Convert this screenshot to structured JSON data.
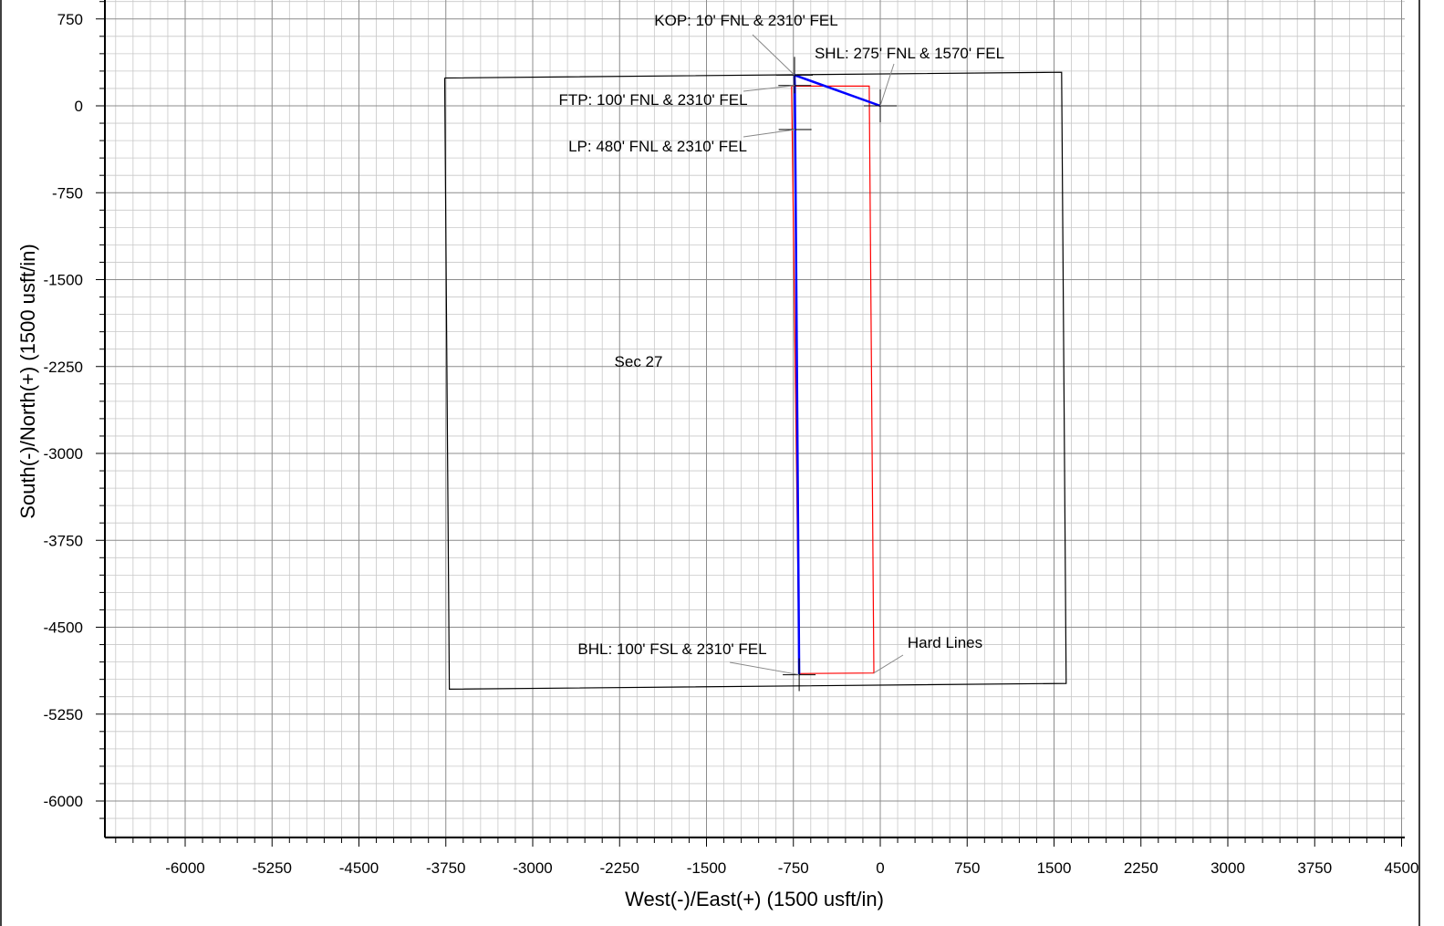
{
  "chart_data": {
    "type": "scatter",
    "xlabel": "West(-)/East(+) (1500 usft/in)",
    "ylabel": "South(-)/North(+) (1500 usft/in)",
    "xlim": [
      -6750,
      4500
    ],
    "ylim": [
      -6300,
      900
    ],
    "x_ticks": [
      -6000,
      -5250,
      -4500,
      -3750,
      -3000,
      -2250,
      -1500,
      -750,
      0,
      750,
      1500,
      2250,
      3000,
      3750,
      4500
    ],
    "y_ticks": [
      750,
      0,
      -750,
      -1500,
      -2250,
      -3000,
      -3750,
      -4500,
      -5250,
      -6000
    ],
    "grid": true,
    "series": [
      {
        "name": "",
        "color": "#0000ff",
        "points": [
          [
            0,
            0
          ],
          [
            -740,
            265
          ],
          [
            -738,
            175
          ],
          [
            -735,
            -205
          ],
          [
            -700,
            -4910
          ]
        ]
      }
    ],
    "section_outline": [
      [
        -3760,
        240
      ],
      [
        1565,
        290
      ],
      [
        1605,
        -4985
      ],
      [
        -3720,
        -5035
      ],
      [
        -3760,
        240
      ]
    ],
    "hard_lines": [
      [
        -765,
        170
      ],
      [
        -95,
        170
      ],
      [
        -55,
        -4895
      ],
      [
        -700,
        -4900
      ],
      [
        -765,
        170
      ]
    ],
    "annotations": [
      {
        "text": "KOP: 10' FNL & 2310' FEL",
        "x": -740,
        "y": 265
      },
      {
        "text": "SHL: 275' FNL & 1570' FEL",
        "x": 0,
        "y": 0
      },
      {
        "text": "FTP: 100' FNL & 2310' FEL",
        "x": -738,
        "y": 175
      },
      {
        "text": "LP: 480' FNL & 2310' FEL",
        "x": -735,
        "y": -205
      },
      {
        "text": "BHL: 100' FSL & 2310' FEL",
        "x": -700,
        "y": -4910
      },
      {
        "text": "Hard Lines",
        "x": -55,
        "y": -4895
      },
      {
        "text": "Sec 27",
        "x": -2080,
        "y": -2210
      }
    ],
    "colors": {
      "wellpath": "#0000ff",
      "hard_lines": "#ff0000",
      "section": "#000000",
      "grid": "#a0a0a0"
    }
  }
}
